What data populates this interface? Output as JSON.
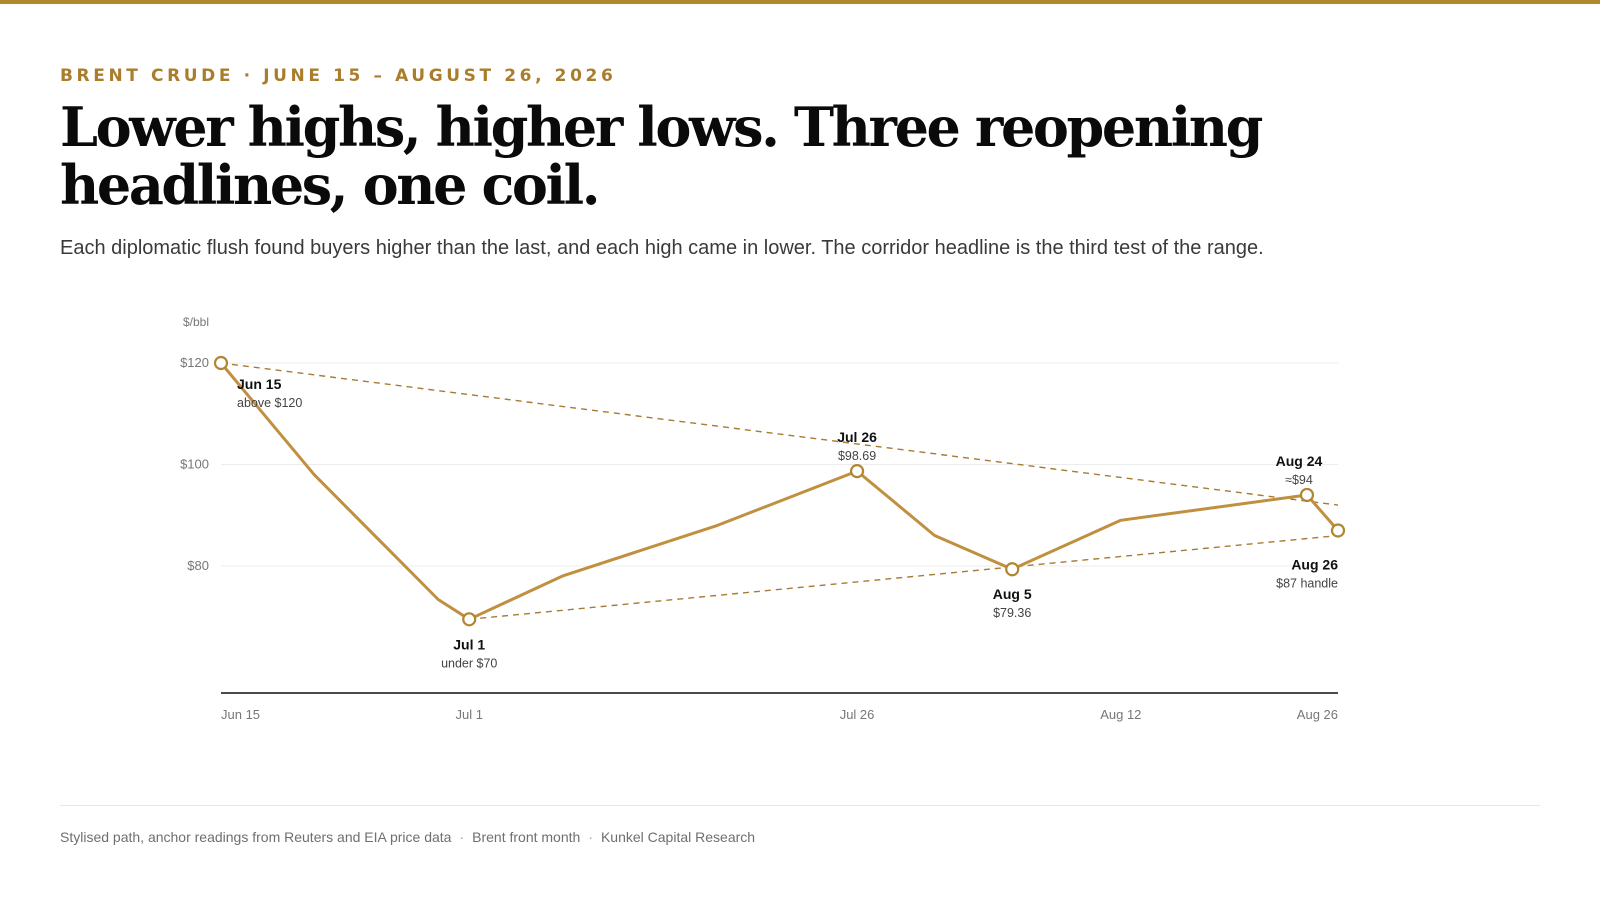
{
  "header": {
    "kicker": "BRENT CRUDE · JUNE 15 – AUGUST 26, 2026",
    "headline": "Lower highs, higher lows. Three reopening headlines, one coil.",
    "subtitle": "Each diplomatic flush found buyers higher than the last, and each high came in lower. The corridor headline is the third test of the range."
  },
  "colors": {
    "accent": "#b0862f",
    "line": "#c09040",
    "trend": "#a77b35",
    "grid": "#ececec",
    "axis": "#111111"
  },
  "chart_data": {
    "type": "line",
    "ylabel": "$/bbl",
    "ylim": [
      55,
      120
    ],
    "xlim": [
      "2026-06-15",
      "2026-08-26"
    ],
    "y_ticks": [
      {
        "value": 120,
        "label": "$120"
      },
      {
        "value": 100,
        "label": "$100"
      },
      {
        "value": 80,
        "label": "$80"
      }
    ],
    "x_ticks": [
      {
        "date": "2026-06-15",
        "label": "Jun 15"
      },
      {
        "date": "2026-07-01",
        "label": "Jul 1"
      },
      {
        "date": "2026-07-26",
        "label": "Jul 26"
      },
      {
        "date": "2026-08-12",
        "label": "Aug 12"
      },
      {
        "date": "2026-08-26",
        "label": "Aug 26"
      }
    ],
    "series": [
      {
        "points": [
          {
            "date": "2026-06-15",
            "value": 120
          },
          {
            "date": "2026-06-21",
            "value": 98
          },
          {
            "date": "2026-06-29",
            "value": 73.4
          },
          {
            "date": "2026-07-01",
            "value": 69.5
          },
          {
            "date": "2026-07-07",
            "value": 78
          },
          {
            "date": "2026-07-17",
            "value": 88
          },
          {
            "date": "2026-07-26",
            "value": 98.69
          },
          {
            "date": "2026-07-31",
            "value": 86
          },
          {
            "date": "2026-08-05",
            "value": 79.36
          },
          {
            "date": "2026-08-12",
            "value": 89
          },
          {
            "date": "2026-08-24",
            "value": 94
          },
          {
            "date": "2026-08-26",
            "value": 87
          }
        ]
      }
    ],
    "trendlines": [
      {
        "kind": "resistance",
        "from": {
          "date": "2026-06-15",
          "value": 120
        },
        "to": {
          "date": "2026-08-26",
          "value": 92
        }
      },
      {
        "kind": "support",
        "from": {
          "date": "2026-07-01",
          "value": 69.5
        },
        "to": {
          "date": "2026-08-26",
          "value": 86
        }
      }
    ],
    "annotations": [
      {
        "date": "2026-06-15",
        "value": 120,
        "title": "Jun 15",
        "detail": "above $120",
        "position": "below-right"
      },
      {
        "date": "2026-07-01",
        "value": 69.5,
        "title": "Jul 1",
        "detail": "under $70",
        "position": "below"
      },
      {
        "date": "2026-07-26",
        "value": 98.69,
        "title": "Jul 26",
        "detail": "$98.69",
        "position": "above"
      },
      {
        "date": "2026-08-05",
        "value": 79.36,
        "title": "Aug 5",
        "detail": "$79.36",
        "position": "below"
      },
      {
        "date": "2026-08-24",
        "value": 94,
        "title": "Aug 24",
        "detail": "≈$94",
        "position": "above-left"
      },
      {
        "date": "2026-08-26",
        "value": 87,
        "title": "Aug 26",
        "detail": "$87 handle",
        "position": "below-left"
      }
    ]
  },
  "footer": {
    "items": [
      "Stylised path, anchor readings from Reuters and EIA price data",
      "Brent front month",
      "Kunkel Capital Research"
    ],
    "separator": "·"
  }
}
